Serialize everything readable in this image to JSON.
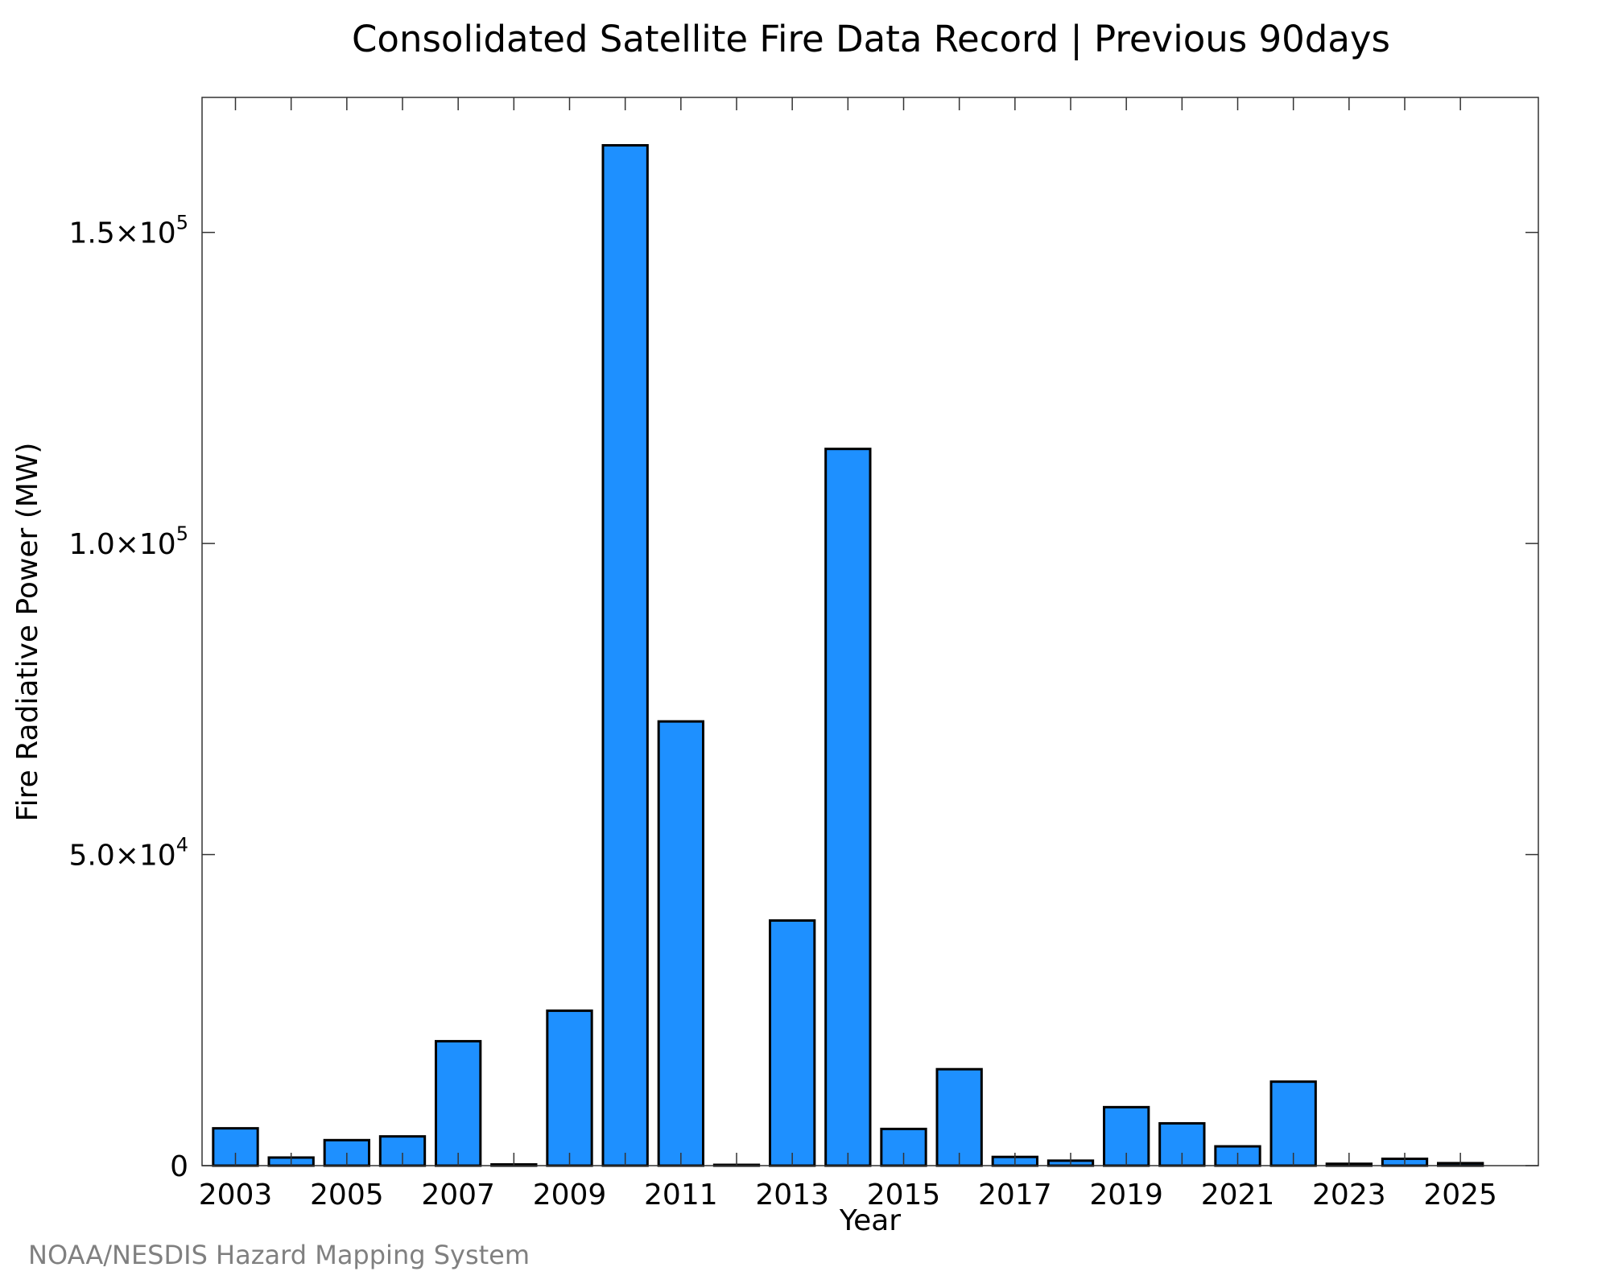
{
  "chart_data": {
    "type": "bar",
    "title": "Consolidated Satellite Fire Data Record | Previous 90days",
    "xlabel": "Year",
    "ylabel": "Fire Radiative Power (MW)",
    "x_tick_labels": [
      "2003",
      "2005",
      "2007",
      "2009",
      "2011",
      "2013",
      "2015",
      "2017",
      "2019",
      "2021",
      "2023",
      "2025"
    ],
    "y_ticks": [
      {
        "value": 0,
        "mantissa": "0",
        "exponent": ""
      },
      {
        "value": 50000,
        "mantissa": "5.0×10",
        "exponent": "4"
      },
      {
        "value": 100000,
        "mantissa": "1.0×10",
        "exponent": "5"
      },
      {
        "value": 150000,
        "mantissa": "1.5×10",
        "exponent": "5"
      }
    ],
    "ylim": [
      0,
      171700
    ],
    "xlim": [
      2002.4,
      2026.4
    ],
    "categories": [
      2003,
      2004,
      2005,
      2006,
      2007,
      2008,
      2009,
      2010,
      2011,
      2012,
      2013,
      2014,
      2015,
      2016,
      2017,
      2018,
      2019,
      2020,
      2021,
      2022,
      2023,
      2024,
      2025
    ],
    "values": [
      6000,
      1300,
      4100,
      4700,
      20000,
      200,
      24900,
      164000,
      71400,
      50,
      39400,
      115200,
      5900,
      15500,
      1400,
      800,
      9400,
      6800,
      3100,
      13500,
      300,
      1100,
      400
    ],
    "bar_color": "#1e90ff",
    "grid": false,
    "source_note": "NOAA/NESDIS Hazard Mapping System"
  }
}
